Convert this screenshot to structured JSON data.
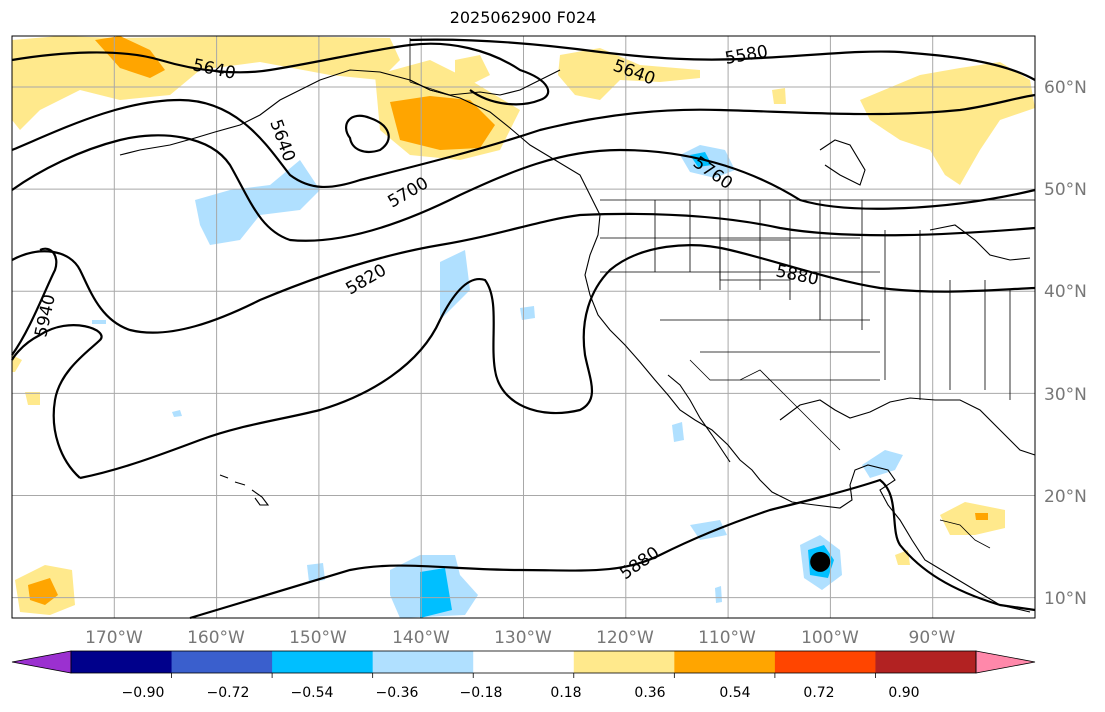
{
  "title": "2025062900 F024",
  "map": {
    "projection": "Plate Carree",
    "extent": {
      "lon_min": -180,
      "lon_max": -80,
      "lat_min": 8,
      "lat_max": 65
    },
    "lon_ticks": [
      "170°W",
      "160°W",
      "150°W",
      "140°W",
      "130°W",
      "120°W",
      "110°W",
      "100°W",
      "90°W"
    ],
    "lat_ticks": [
      "60°N",
      "50°N",
      "40°N",
      "30°N",
      "20°N",
      "10°N"
    ],
    "contour_labels": [
      "5640",
      "5580",
      "5640",
      "5640",
      "5760",
      "5700",
      "5820",
      "5880",
      "5940",
      "5880"
    ],
    "grid": true,
    "marker": {
      "lon": -101,
      "lat": 13.5,
      "color": "#000000"
    }
  },
  "colorbar": {
    "tick_labels": [
      "−0.90",
      "−0.72",
      "−0.54",
      "−0.36",
      "−0.18",
      "0.18",
      "0.36",
      "0.54",
      "0.72",
      "0.90"
    ],
    "colors": [
      "#9b30d0",
      "#00008b",
      "#3a5fcd",
      "#00bfff",
      "#b0e0ff",
      "#ffffff",
      "#ffe98c",
      "#ffa500",
      "#ff4500",
      "#b22222",
      "#ff88aa"
    ]
  }
}
